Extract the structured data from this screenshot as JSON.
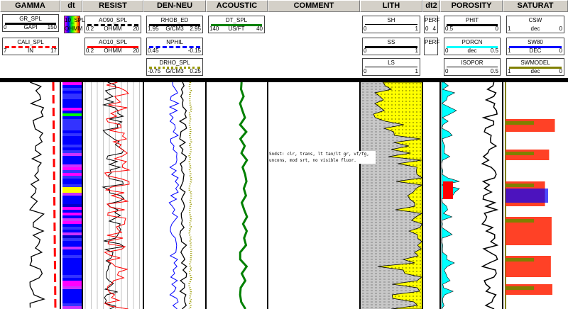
{
  "tracks": [
    {
      "id": "gamma",
      "label": "GAMMA"
    },
    {
      "id": "dt",
      "label": "dt"
    },
    {
      "id": "resist",
      "label": "RESIST"
    },
    {
      "id": "den-neu",
      "label": "DEN-NEU"
    },
    {
      "id": "acoustic",
      "label": "ACOUSTIC"
    },
    {
      "id": "comment",
      "label": "COMMENT"
    },
    {
      "id": "lith",
      "label": "LITH"
    },
    {
      "id": "dt2",
      "label": "dt2"
    },
    {
      "id": "porosity",
      "label": "POROSITY"
    },
    {
      "id": "saturat",
      "label": "SATURAT"
    }
  ],
  "curves": [
    {
      "name": "GR_SPL",
      "min": "0",
      "unit": "GAPI",
      "max": "150",
      "color": "#000000",
      "style": "solid"
    },
    {
      "name": "CALI_SPL",
      "min": "7",
      "unit": "IN",
      "max": "17",
      "color": "#ff0000",
      "style": "dashed"
    },
    {
      "name": "10_SPL",
      "min": "",
      "unit": "OHMM",
      "max": "",
      "color": "#ff00ff",
      "style": "colormap"
    },
    {
      "name": "AO90_SPL",
      "min": "0.2",
      "unit": "OHMM",
      "max": "20",
      "color": "#000000",
      "style": "dashed"
    },
    {
      "name": "AO10_SPL",
      "min": "0.2",
      "unit": "OHMM",
      "max": "20",
      "color": "#ff0000",
      "style": "solid"
    },
    {
      "name": "RHOB_ED",
      "min": "1.95",
      "unit": "G/CM3",
      "max": "2.95",
      "color": "#000000",
      "style": "solid"
    },
    {
      "name": "NPHIL",
      "min": "0.45",
      "unit": "",
      "max": "-0.15",
      "color": "#0000ff",
      "style": "dashed"
    },
    {
      "name": "DRHO_SPL",
      "min": "-0.75",
      "unit": "G/CM3",
      "max": "0.25",
      "color": "#999900",
      "style": "dotted"
    },
    {
      "name": "DT_SPL",
      "min": "140",
      "unit": "US/FT",
      "max": "40",
      "color": "#008000",
      "style": "solid"
    },
    {
      "name": "SH",
      "min": "0",
      "unit": "",
      "max": "1",
      "color": "#000000",
      "style": "thin"
    },
    {
      "name": "SS",
      "min": "0",
      "unit": "",
      "max": "1",
      "color": "#000000",
      "style": "solid"
    },
    {
      "name": "LS",
      "min": "0",
      "unit": "",
      "max": "1",
      "color": "#000000",
      "style": "thin"
    },
    {
      "name": "PERF",
      "min": "0",
      "unit": "",
      "max": "4",
      "color": "#000000",
      "style": "none"
    },
    {
      "name": "PERF",
      "min": "",
      "unit": "",
      "max": "",
      "color": "#000000",
      "style": "perf"
    },
    {
      "name": "PHIT",
      "min": "0.5",
      "unit": "",
      "max": "0",
      "color": "#000000",
      "style": "solid"
    },
    {
      "name": "PORCN",
      "min": "0",
      "unit": "dec",
      "max": "0.5",
      "color": "#00ffff",
      "style": "solid"
    },
    {
      "name": "ISOPOR",
      "min": "0",
      "unit": "",
      "max": "0.5",
      "color": "#000000",
      "style": "thin"
    },
    {
      "name": "CSW",
      "min": "1",
      "unit": "dec",
      "max": "0",
      "color": "#0000ff",
      "style": "triangle"
    },
    {
      "name": "SW80",
      "min": "1",
      "unit": "DEC",
      "max": "0",
      "color": "#0000ff",
      "style": "solid"
    },
    {
      "name": "SWMODEL",
      "min": "1",
      "unit": "dec",
      "max": "0",
      "color": "#808000",
      "style": "solid"
    }
  ],
  "comment": {
    "line1": "Sndst: clr, trans, lt tan/lt gr, vf/fg,",
    "line2": "uncons, mod srt, no visible fluor."
  }
}
